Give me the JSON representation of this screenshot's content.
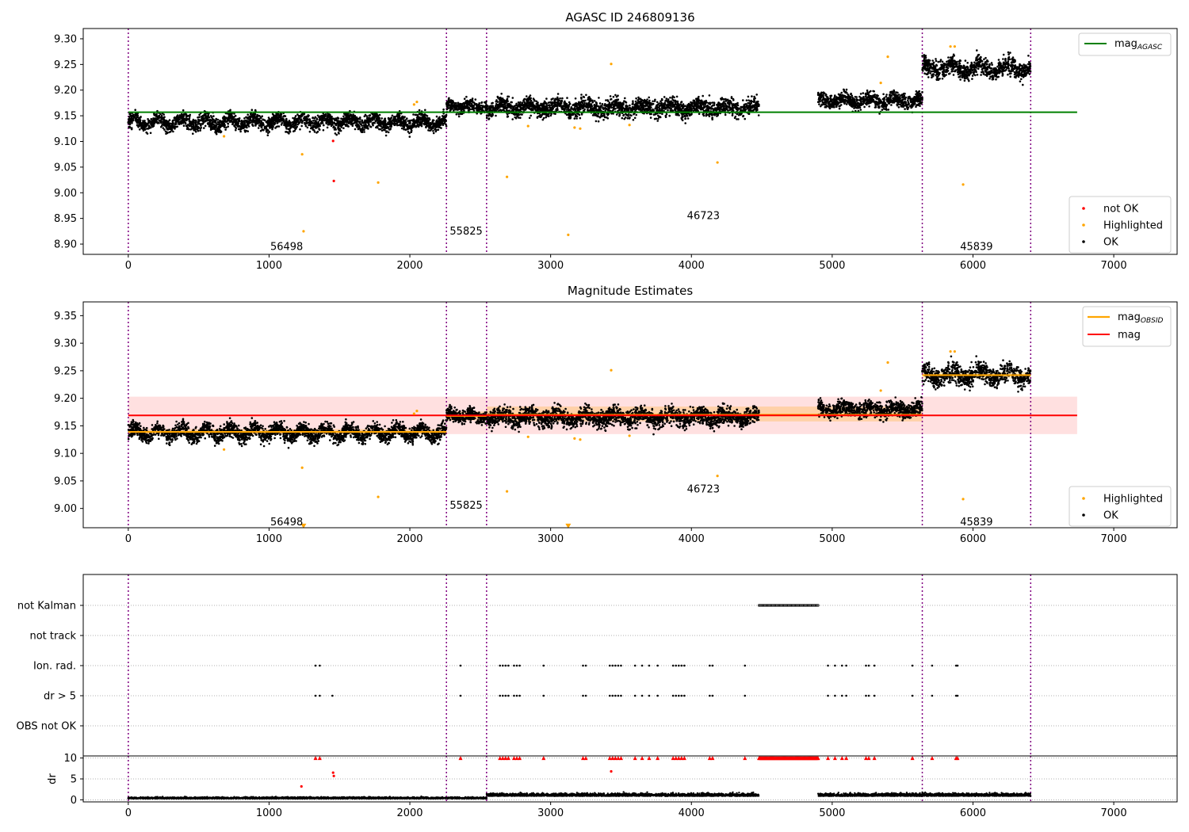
{
  "chart_data": [
    {
      "type": "scatter",
      "title": "AGASC ID 246809136",
      "xlim": [
        -320,
        7450
      ],
      "ylim": [
        8.88,
        9.32
      ],
      "xticks": [
        0,
        1000,
        2000,
        3000,
        4000,
        5000,
        6000,
        7000
      ],
      "yticks": [
        8.9,
        8.95,
        9.0,
        9.05,
        9.1,
        9.15,
        9.2,
        9.25,
        9.3
      ],
      "obs_boundaries": [
        0,
        2260,
        2545,
        5640,
        6410
      ],
      "obsid_labels": [
        {
          "x": 1125,
          "y": 8.895,
          "text": "56498"
        },
        {
          "x": 2400,
          "y": 8.925,
          "text": "55825"
        },
        {
          "x": 4085,
          "y": 8.955,
          "text": "46723"
        },
        {
          "x": 6025,
          "y": 8.895,
          "text": "45839"
        }
      ],
      "lines": [
        {
          "name": "mag_AGASC",
          "value": 9.157,
          "x": [
            0,
            6740
          ],
          "color": "#008000"
        }
      ],
      "series": [
        {
          "name": "OK",
          "color": "#000000",
          "segments": [
            {
              "x": [
                0,
                2260
              ],
              "level": 9.138,
              "amp": 0.008,
              "noise": 0.012,
              "period": 170
            },
            {
              "x": [
                2260,
                2545
              ],
              "level": 9.168,
              "amp": 0.004,
              "noise": 0.01,
              "period": 150
            },
            {
              "x": [
                2545,
                4480
              ],
              "level": 9.166,
              "amp": 0.006,
              "noise": 0.014,
              "period": 200
            },
            {
              "x": [
                4900,
                5640
              ],
              "level": 9.18,
              "amp": 0.005,
              "noise": 0.012,
              "period": 180
            },
            {
              "x": [
                5640,
                6410
              ],
              "level": 9.243,
              "amp": 0.008,
              "noise": 0.015,
              "period": 200
            }
          ]
        },
        {
          "name": "Highlighted",
          "color": "#ffa500",
          "x": [
            680,
            1235,
            1245,
            1775,
            2030,
            2050,
            2690,
            2840,
            3125,
            3170,
            3210,
            3430,
            3560,
            4185,
            5345,
            5395,
            5840,
            5870,
            5930
          ],
          "y": [
            9.11,
            9.075,
            8.925,
            9.02,
            9.172,
            9.177,
            9.031,
            9.13,
            8.918,
            9.127,
            9.125,
            9.251,
            9.132,
            9.059,
            9.214,
            9.265,
            9.285,
            9.285,
            9.016
          ]
        },
        {
          "name": "not OK",
          "color": "#ff0000",
          "x": [
            1455,
            1460
          ],
          "y": [
            9.101,
            9.023
          ]
        }
      ],
      "legend_top": [
        "mag_AGASC"
      ],
      "legend_bottom": [
        "not OK",
        "Highlighted",
        "OK"
      ]
    },
    {
      "type": "scatter",
      "title": "Magnitude Estimates",
      "xlim": [
        -320,
        7450
      ],
      "ylim": [
        8.965,
        9.375
      ],
      "xticks": [
        0,
        1000,
        2000,
        3000,
        4000,
        5000,
        6000,
        7000
      ],
      "yticks": [
        9.0,
        9.05,
        9.1,
        9.15,
        9.2,
        9.25,
        9.3,
        9.35
      ],
      "obs_boundaries": [
        0,
        2260,
        2545,
        5640,
        6410
      ],
      "obsid_labels": [
        {
          "x": 1125,
          "y": 8.975,
          "text": "56498"
        },
        {
          "x": 2400,
          "y": 9.005,
          "text": "55825"
        },
        {
          "x": 4085,
          "y": 9.035,
          "text": "46723"
        },
        {
          "x": 6025,
          "y": 8.975,
          "text": "45839"
        }
      ],
      "bands": [
        {
          "x": [
            0,
            6740
          ],
          "y": [
            9.135,
            9.203
          ],
          "color": "#ff0000",
          "opacity": 0.12
        },
        {
          "x": [
            0,
            2260
          ],
          "y": [
            9.134,
            9.144
          ],
          "color": "#ffa500",
          "opacity": 0.25
        },
        {
          "x": [
            2260,
            2545
          ],
          "y": [
            9.16,
            9.176
          ],
          "color": "#ffa500",
          "opacity": 0.25
        },
        {
          "x": [
            2545,
            5640
          ],
          "y": [
            9.158,
            9.185
          ],
          "color": "#ffa500",
          "opacity": 0.25
        },
        {
          "x": [
            5640,
            6410
          ],
          "y": [
            9.236,
            9.248
          ],
          "color": "#ffa500",
          "opacity": 0.25
        }
      ],
      "lines": [
        {
          "name": "mag_OBSID",
          "color": "#ffa500",
          "steps": [
            {
              "x": [
                0,
                2260
              ],
              "value": 9.139
            },
            {
              "x": [
                2260,
                2545
              ],
              "value": 9.168
            },
            {
              "x": [
                2545,
                5640
              ],
              "value": 9.17
            },
            {
              "x": [
                5640,
                6410
              ],
              "value": 9.242
            }
          ]
        },
        {
          "name": "mag",
          "value": 9.169,
          "x": [
            0,
            6740
          ],
          "color": "#ff0000"
        }
      ],
      "series": [
        {
          "name": "OK",
          "color": "#000000",
          "segments": [
            {
              "x": [
                0,
                2260
              ],
              "level": 9.138,
              "amp": 0.008,
              "noise": 0.012,
              "period": 170
            },
            {
              "x": [
                2260,
                2545
              ],
              "level": 9.168,
              "amp": 0.004,
              "noise": 0.01,
              "period": 150
            },
            {
              "x": [
                2545,
                4480
              ],
              "level": 9.166,
              "amp": 0.006,
              "noise": 0.014,
              "period": 200
            },
            {
              "x": [
                4900,
                5640
              ],
              "level": 9.18,
              "amp": 0.005,
              "noise": 0.012,
              "period": 180
            },
            {
              "x": [
                5640,
                6410
              ],
              "level": 9.243,
              "amp": 0.008,
              "noise": 0.015,
              "period": 200
            }
          ]
        },
        {
          "name": "Highlighted",
          "color": "#ffa500",
          "x": [
            680,
            1235,
            1775,
            2030,
            2050,
            2690,
            2840,
            3170,
            3210,
            3430,
            3560,
            4185,
            5345,
            5395,
            5840,
            5870,
            5930
          ],
          "y": [
            9.107,
            9.074,
            9.021,
            9.172,
            9.177,
            9.031,
            9.13,
            9.127,
            9.125,
            9.251,
            9.132,
            9.059,
            9.214,
            9.265,
            9.285,
            9.285,
            9.017
          ]
        },
        {
          "name": "Highlighted (below axis)",
          "color": "#ffa500",
          "marker": "triangle-down",
          "x": [
            1245,
            3125
          ],
          "y": [
            8.968,
            8.968
          ]
        }
      ],
      "legend_top": [
        "mag_OBSID",
        "mag"
      ],
      "legend_bottom": [
        "Highlighted",
        "OK"
      ]
    },
    {
      "type": "scatter",
      "title": "",
      "xlim": [
        -320,
        7450
      ],
      "categories": [
        "not Kalman",
        "not track",
        "Ion. rad.",
        "dr > 5",
        "OBS not OK"
      ],
      "obs_boundaries": [
        0,
        2260,
        2545,
        5640,
        6410
      ],
      "flag_runs": [
        {
          "category": "not Kalman",
          "x": [
            4480,
            4900
          ]
        },
        {
          "category": "Ion. rad.",
          "x": [
            1330,
            1360,
            2360,
            2640,
            2660,
            2680,
            2700,
            2740,
            2760,
            2780,
            2950,
            3230,
            3250,
            3420,
            3440,
            3460,
            3480,
            3500,
            3600,
            3650,
            3700,
            3760,
            3870,
            3890,
            3910,
            3930,
            3950,
            4130,
            4150,
            4380,
            4970,
            5020,
            5070,
            5100,
            5240,
            5260,
            5300,
            5570,
            5710,
            5880,
            5890
          ]
        },
        {
          "category": "dr > 5",
          "x": [
            1330,
            1360,
            1450,
            2360,
            2640,
            2660,
            2680,
            2700,
            2740,
            2760,
            2780,
            2950,
            3230,
            3250,
            3420,
            3440,
            3460,
            3480,
            3500,
            3600,
            3650,
            3700,
            3760,
            3870,
            3890,
            3910,
            3930,
            3950,
            4130,
            4150,
            4380,
            4970,
            5020,
            5070,
            5100,
            5240,
            5260,
            5300,
            5570,
            5710,
            5880,
            5890
          ]
        }
      ]
    },
    {
      "type": "scatter",
      "title": "",
      "ylabel": "dr",
      "xlim": [
        -320,
        7450
      ],
      "ylim": [
        -0.5,
        10.5
      ],
      "xticks": [
        0,
        1000,
        2000,
        3000,
        4000,
        5000,
        6000,
        7000
      ],
      "yticks": [
        0,
        5,
        10
      ],
      "obs_boundaries": [
        0,
        2260,
        2545,
        5640,
        6410
      ],
      "series": [
        {
          "name": "dr",
          "color": "#000000",
          "segments": [
            {
              "x": [
                0,
                2545
              ],
              "level": 0.3,
              "noise": 0.25
            },
            {
              "x": [
                2545,
                4480
              ],
              "level": 0.9,
              "noise": 0.5
            },
            {
              "x": [
                4900,
                6410
              ],
              "level": 0.9,
              "noise": 0.5
            }
          ]
        },
        {
          "name": "dr (outliers)",
          "color": "#ff0000",
          "x": [
            1230,
            1455,
            1460,
            3430
          ],
          "y": [
            3.2,
            6.5,
            5.7,
            6.8
          ]
        },
        {
          "name": "dr > 10 (clipped)",
          "color": "#ff0000",
          "marker": "triangle-up",
          "y": 10,
          "x": [
            1330,
            1360,
            2360,
            2640,
            2660,
            2680,
            2700,
            2740,
            2760,
            2780,
            2950,
            3230,
            3250,
            3420,
            3440,
            3460,
            3480,
            3500,
            3600,
            3650,
            3700,
            3760,
            3870,
            3890,
            3910,
            3930,
            3950,
            4130,
            4150,
            4380,
            4970,
            5020,
            5070,
            5100,
            5240,
            5260,
            5300,
            5570,
            5710,
            5880,
            5890
          ],
          "run": [
            4480,
            4900
          ]
        }
      ]
    }
  ]
}
